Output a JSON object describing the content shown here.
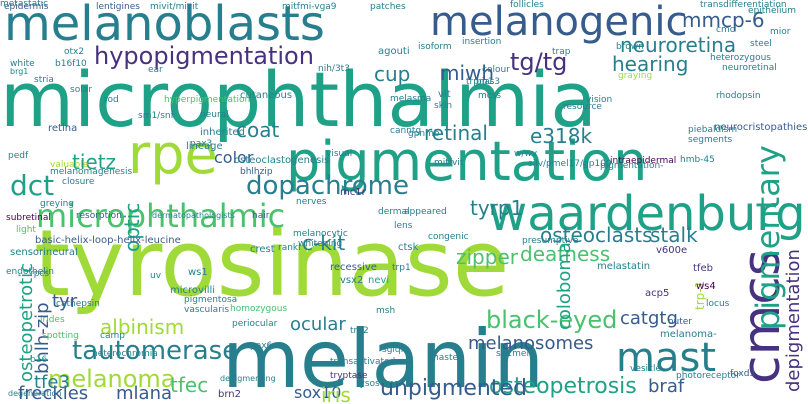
{
  "title": "",
  "palette": {
    "background": "#ffffff",
    "yellow_green": "#a0da39",
    "green": "#4ac16d",
    "teal_green": "#1fa187",
    "teal": "#277f8e",
    "blue": "#365c8d",
    "indigo": "#46327e",
    "purple": "#440154",
    "lime": "#d8e219",
    "light_green": "#7ad151"
  },
  "words": [
    {
      "text": "tyrosinase",
      "color": "#a0da39",
      "orientation": "horizontal"
    },
    {
      "text": "microphthalmia",
      "color": "#1fa187",
      "orientation": "horizontal"
    },
    {
      "text": "melanin",
      "color": "#277f8e",
      "orientation": "horizontal"
    },
    {
      "text": "pigmentation",
      "color": "#1fa187",
      "orientation": "horizontal"
    },
    {
      "text": "melanoblasts",
      "color": "#277f8e",
      "orientation": "horizontal"
    },
    {
      "text": "waardenburg",
      "color": "#1fa187",
      "orientation": "horizontal"
    },
    {
      "text": "melanogenic",
      "color": "#365c8d",
      "orientation": "horizontal"
    },
    {
      "text": "rpe",
      "color": "#a0da39",
      "orientation": "horizontal"
    },
    {
      "text": "cmcs",
      "color": "#46327e",
      "orientation": "vertical"
    },
    {
      "text": "mast",
      "color": "#277f8e",
      "orientation": "horizontal"
    },
    {
      "text": "microphthalmic",
      "color": "#4ac16d",
      "orientation": "horizontal"
    },
    {
      "text": "pigmentary",
      "color": "#1fa187",
      "orientation": "vertical"
    },
    {
      "text": "dopachrome",
      "color": "#277f8e",
      "orientation": "horizontal"
    },
    {
      "text": "dct",
      "color": "#1fa187",
      "orientation": "horizontal"
    },
    {
      "text": "hypopigmentation",
      "color": "#46327e",
      "orientation": "horizontal"
    },
    {
      "text": "tautomerase",
      "color": "#277f8e",
      "orientation": "horizontal"
    },
    {
      "text": "melanoma",
      "color": "#a0da39",
      "orientation": "horizontal"
    },
    {
      "text": "melanosomes",
      "color": "#365c8d",
      "orientation": "horizontal"
    },
    {
      "text": "black-eyed",
      "color": "#4ac16d",
      "orientation": "horizontal"
    },
    {
      "text": "osteopetrosis",
      "color": "#1fa187",
      "orientation": "horizontal"
    },
    {
      "text": "unpigmented",
      "color": "#365c8d",
      "orientation": "horizontal"
    },
    {
      "text": "tg/tg",
      "color": "#46327e",
      "orientation": "horizontal"
    },
    {
      "text": "mmcp-6",
      "color": "#365c8d",
      "orientation": "horizontal"
    },
    {
      "text": "neuroretina",
      "color": "#277f8e",
      "orientation": "horizontal"
    },
    {
      "text": "hearing",
      "color": "#277f8e",
      "orientation": "horizontal"
    },
    {
      "text": "cup",
      "color": "#277f8e",
      "orientation": "horizontal"
    },
    {
      "text": "miwh",
      "color": "#365c8d",
      "orientation": "horizontal"
    },
    {
      "text": "retinal",
      "color": "#277f8e",
      "orientation": "horizontal"
    },
    {
      "text": "e318k",
      "color": "#277f8e",
      "orientation": "horizontal"
    },
    {
      "text": "osteoclasts",
      "color": "#277f8e",
      "orientation": "horizontal"
    },
    {
      "text": "stalk",
      "color": "#277f8e",
      "orientation": "horizontal"
    },
    {
      "text": "deafness",
      "color": "#4ac16d",
      "orientation": "horizontal"
    },
    {
      "text": "zipper",
      "color": "#4ac16d",
      "orientation": "horizontal"
    },
    {
      "text": "c-kit",
      "color": "#277f8e",
      "orientation": "horizontal"
    },
    {
      "text": "tyrp1",
      "color": "#277f8e",
      "orientation": "horizontal"
    },
    {
      "text": "tietz",
      "color": "#1fa187",
      "orientation": "horizontal"
    },
    {
      "text": "color",
      "color": "#365c8d",
      "orientation": "horizontal"
    },
    {
      "text": "optic",
      "color": "#1fa187",
      "orientation": "vertical"
    },
    {
      "text": "coat",
      "color": "#277f8e",
      "orientation": "horizontal"
    },
    {
      "text": "albinism",
      "color": "#a0da39",
      "orientation": "horizontal"
    },
    {
      "text": "ocular",
      "color": "#277f8e",
      "orientation": "horizontal"
    },
    {
      "text": "tyr",
      "color": "#365c8d",
      "orientation": "horizontal"
    },
    {
      "text": "freckles",
      "color": "#365c8d",
      "orientation": "horizontal"
    },
    {
      "text": "mlana",
      "color": "#365c8d",
      "orientation": "horizontal"
    },
    {
      "text": "tfec",
      "color": "#4ac16d",
      "orientation": "horizontal"
    },
    {
      "text": "sox10",
      "color": "#365c8d",
      "orientation": "horizontal"
    },
    {
      "text": "iris",
      "color": "#a0da39",
      "orientation": "horizontal"
    },
    {
      "text": "braf",
      "color": "#365c8d",
      "orientation": "horizontal"
    },
    {
      "text": "catgtg",
      "color": "#365c8d",
      "orientation": "horizontal"
    },
    {
      "text": "coloboma",
      "color": "#1fa187",
      "orientation": "vertical"
    },
    {
      "text": "tfe3",
      "color": "#277f8e",
      "orientation": "horizontal"
    },
    {
      "text": "bhlh-zip",
      "color": "#365c8d",
      "orientation": "vertical"
    },
    {
      "text": "osteopetrotic",
      "color": "#1fa187",
      "orientation": "vertical"
    },
    {
      "text": "depigmentation",
      "color": "#46327e",
      "orientation": "vertical"
    },
    {
      "text": "trp-1",
      "color": "#a0da39",
      "orientation": "vertical"
    },
    {
      "text": "mc1r",
      "color": "#46327e",
      "orientation": "horizontal"
    },
    {
      "text": "melastatin",
      "color": "#277f8e",
      "orientation": "horizontal"
    },
    {
      "text": "tfeb",
      "color": "#46327e",
      "orientation": "horizontal"
    },
    {
      "text": "acp5",
      "color": "#46327e",
      "orientation": "horizontal"
    },
    {
      "text": "brn2",
      "color": "#46327e",
      "orientation": "horizontal"
    },
    {
      "text": "v600e",
      "color": "#46327e",
      "orientation": "horizontal"
    },
    {
      "text": "retina",
      "color": "#365c8d",
      "orientation": "horizontal"
    },
    {
      "text": "basic-helix-loop-helix-leucine",
      "color": "#365c8d",
      "orientation": "horizontal"
    },
    {
      "text": "sensorineural",
      "color": "#277f8e",
      "orientation": "horizontal"
    },
    {
      "text": "subretinal",
      "color": "#440154",
      "orientation": "horizontal"
    },
    {
      "text": "greying",
      "color": "#277f8e",
      "orientation": "horizontal"
    },
    {
      "text": "resorption",
      "color": "#365c8d",
      "orientation": "horizontal"
    },
    {
      "text": "dermatopathologists",
      "color": "#277f8e",
      "orientation": "horizontal"
    },
    {
      "text": "melanomagenesis",
      "color": "#277f8e",
      "orientation": "horizontal"
    },
    {
      "text": "closure",
      "color": "#277f8e",
      "orientation": "horizontal"
    },
    {
      "text": "valuable",
      "color": "#a0da39",
      "orientation": "horizontal"
    },
    {
      "text": "lineage",
      "color": "#277f8e",
      "orientation": "horizontal"
    },
    {
      "text": "osteoclastogenesis",
      "color": "#277f8e",
      "orientation": "horizontal"
    },
    {
      "text": "bhlhzip",
      "color": "#365c8d",
      "orientation": "horizontal"
    },
    {
      "text": "mitfvit",
      "color": "#277f8e",
      "orientation": "horizontal"
    },
    {
      "text": "silv/pmel17/gp100",
      "color": "#277f8e",
      "orientation": "horizontal"
    },
    {
      "text": "intraepidermal",
      "color": "#440154",
      "orientation": "horizontal"
    },
    {
      "text": "hmb-45",
      "color": "#277f8e",
      "orientation": "horizontal"
    },
    {
      "text": "neurocristopathies",
      "color": "#365c8d",
      "orientation": "horizontal"
    },
    {
      "text": "piebaldism",
      "color": "#277f8e",
      "orientation": "horizontal"
    },
    {
      "text": "segments",
      "color": "#277f8e",
      "orientation": "horizontal"
    },
    {
      "text": "nerves",
      "color": "#277f8e",
      "orientation": "horizontal"
    },
    {
      "text": "melanocytic",
      "color": "#277f8e",
      "orientation": "horizontal"
    },
    {
      "text": "whitening",
      "color": "#277f8e",
      "orientation": "horizontal"
    },
    {
      "text": "presumptive",
      "color": "#277f8e",
      "orientation": "horizontal"
    },
    {
      "text": "recessive",
      "color": "#365c8d",
      "orientation": "horizontal"
    },
    {
      "text": "vsx2",
      "color": "#277f8e",
      "orientation": "horizontal"
    },
    {
      "text": "nevi",
      "color": "#1fa187",
      "orientation": "horizontal"
    },
    {
      "text": "rpcs",
      "color": "#277f8e",
      "orientation": "horizontal"
    },
    {
      "text": "cathepsin",
      "color": "#277f8e",
      "orientation": "horizontal"
    },
    {
      "text": "irides",
      "color": "#4ac16d",
      "orientation": "horizontal"
    },
    {
      "text": "spotting",
      "color": "#4ac16d",
      "orientation": "horizontal"
    },
    {
      "text": "b16",
      "color": "#1fa187",
      "orientation": "horizontal"
    },
    {
      "text": "camp",
      "color": "#277f8e",
      "orientation": "horizontal"
    },
    {
      "text": "heterochromia",
      "color": "#277f8e",
      "orientation": "horizontal"
    },
    {
      "text": "degeneration",
      "color": "#277f8e",
      "orientation": "horizontal"
    },
    {
      "text": "depigmenting",
      "color": "#277f8e",
      "orientation": "horizontal"
    },
    {
      "text": "tryptase",
      "color": "#46327e",
      "orientation": "horizontal"
    },
    {
      "text": "transactivated",
      "color": "#277f8e",
      "orientation": "horizontal"
    },
    {
      "text": "lysosomal",
      "color": "#277f8e",
      "orientation": "horizontal"
    },
    {
      "text": "vesicle",
      "color": "#277f8e",
      "orientation": "horizontal"
    },
    {
      "text": "photoreceptor",
      "color": "#277f8e",
      "orientation": "horizontal"
    },
    {
      "text": "foxd3",
      "color": "#365c8d",
      "orientation": "horizontal"
    },
    {
      "text": "s01mel",
      "color": "#277f8e",
      "orientation": "horizontal"
    },
    {
      "text": "homozygous",
      "color": "#4ac16d",
      "orientation": "horizontal"
    },
    {
      "text": "periocular",
      "color": "#277f8e",
      "orientation": "horizontal"
    },
    {
      "text": "pigmentosa",
      "color": "#277f8e",
      "orientation": "horizontal"
    },
    {
      "text": "vascularis",
      "color": "#277f8e",
      "orientation": "horizontal"
    },
    {
      "text": "microvilli",
      "color": "#277f8e",
      "orientation": "horizontal"
    },
    {
      "text": "ws1",
      "color": "#277f8e",
      "orientation": "horizontal"
    },
    {
      "text": "crest",
      "color": "#277f8e",
      "orientation": "horizontal"
    },
    {
      "text": "rankl",
      "color": "#277f8e",
      "orientation": "horizontal"
    },
    {
      "text": "trp1",
      "color": "#277f8e",
      "orientation": "horizontal"
    },
    {
      "text": "ctsk",
      "color": "#277f8e",
      "orientation": "horizontal"
    },
    {
      "text": "lens",
      "color": "#277f8e",
      "orientation": "horizontal"
    },
    {
      "text": "dermal",
      "color": "#277f8e",
      "orientation": "horizontal"
    },
    {
      "text": "appeared",
      "color": "#277f8e",
      "orientation": "horizontal"
    },
    {
      "text": "melanoma-",
      "color": "#277f8e",
      "orientation": "horizontal"
    },
    {
      "text": "outer",
      "color": "#365c8d",
      "orientation": "horizontal"
    },
    {
      "text": "locus",
      "color": "#277f8e",
      "orientation": "horizontal"
    },
    {
      "text": "ws4",
      "color": "#440154",
      "orientation": "horizontal"
    },
    {
      "text": "inherited",
      "color": "#277f8e",
      "orientation": "horizontal"
    },
    {
      "text": "pax3",
      "color": "#277f8e",
      "orientation": "horizontal"
    },
    {
      "text": "neural",
      "color": "#277f8e",
      "orientation": "horizontal"
    },
    {
      "text": "sm1/snf",
      "color": "#277f8e",
      "orientation": "horizontal"
    },
    {
      "text": "cutaneous",
      "color": "#277f8e",
      "orientation": "horizontal"
    },
    {
      "text": "hair",
      "color": "#365c8d",
      "orientation": "horizontal"
    },
    {
      "text": "gpnmb",
      "color": "#277f8e",
      "orientation": "horizontal"
    },
    {
      "text": "canntg",
      "color": "#277f8e",
      "orientation": "horizontal"
    },
    {
      "text": "resource",
      "color": "#277f8e",
      "orientation": "horizontal"
    },
    {
      "text": "vision",
      "color": "#277f8e",
      "orientation": "horizontal"
    },
    {
      "text": "vit",
      "color": "#277f8e",
      "orientation": "horizontal"
    },
    {
      "text": "skin",
      "color": "#277f8e",
      "orientation": "horizontal"
    },
    {
      "text": "agouti",
      "color": "#277f8e",
      "orientation": "horizontal"
    },
    {
      "text": "nih/3t3",
      "color": "#277f8e",
      "orientation": "horizontal"
    },
    {
      "text": "rod",
      "color": "#277f8e",
      "orientation": "horizontal"
    },
    {
      "text": "solar",
      "color": "#277f8e",
      "orientation": "horizontal"
    },
    {
      "text": "stria",
      "color": "#277f8e",
      "orientation": "horizontal"
    },
    {
      "text": "otx2",
      "color": "#277f8e",
      "orientation": "horizontal"
    },
    {
      "text": "white",
      "color": "#277f8e",
      "orientation": "horizontal"
    },
    {
      "text": "b16f10",
      "color": "#277f8e",
      "orientation": "horizontal"
    },
    {
      "text": "brg1",
      "color": "#277f8e",
      "orientation": "horizontal"
    },
    {
      "text": "epidermis",
      "color": "#365c8d",
      "orientation": "horizontal"
    },
    {
      "text": "lentigines",
      "color": "#365c8d",
      "orientation": "horizontal"
    },
    {
      "text": "mivit/mivit",
      "color": "#277f8e",
      "orientation": "horizontal"
    },
    {
      "text": "mitfmi-vga9",
      "color": "#277f8e",
      "orientation": "horizontal"
    },
    {
      "text": "patches",
      "color": "#277f8e",
      "orientation": "horizontal"
    },
    {
      "text": "follicles",
      "color": "#277f8e",
      "orientation": "horizontal"
    },
    {
      "text": "transdifferentiation",
      "color": "#277f8e",
      "orientation": "horizontal"
    },
    {
      "text": "epithelium",
      "color": "#277f8e",
      "orientation": "horizontal"
    },
    {
      "text": "cmc",
      "color": "#277f8e",
      "orientation": "horizontal"
    },
    {
      "text": "mior",
      "color": "#277f8e",
      "orientation": "horizontal"
    },
    {
      "text": "steel",
      "color": "#277f8e",
      "orientation": "horizontal"
    },
    {
      "text": "isoform",
      "color": "#277f8e",
      "orientation": "horizontal"
    },
    {
      "text": "insertion",
      "color": "#277f8e",
      "orientation": "horizontal"
    },
    {
      "text": "trpm1",
      "color": "#277f8e",
      "orientation": "horizontal"
    },
    {
      "text": "colour",
      "color": "#277f8e",
      "orientation": "horizontal"
    },
    {
      "text": "pias3",
      "color": "#277f8e",
      "orientation": "horizontal"
    },
    {
      "text": "trap",
      "color": "#277f8e",
      "orientation": "horizontal"
    },
    {
      "text": "brown",
      "color": "#277f8e",
      "orientation": "horizontal"
    },
    {
      "text": "graying",
      "color": "#a0da39",
      "orientation": "horizontal"
    },
    {
      "text": "heterozygous",
      "color": "#277f8e",
      "orientation": "horizontal"
    },
    {
      "text": "neuroretinal",
      "color": "#277f8e",
      "orientation": "horizontal"
    },
    {
      "text": "rhodopsin",
      "color": "#277f8e",
      "orientation": "horizontal"
    },
    {
      "text": "ear",
      "color": "#277f8e",
      "orientation": "horizontal"
    },
    {
      "text": "hyperpigmentation",
      "color": "#4ac16d",
      "orientation": "horizontal"
    },
    {
      "text": "pedf",
      "color": "#277f8e",
      "orientation": "horizontal"
    },
    {
      "text": "light",
      "color": "#4ac16d",
      "orientation": "horizontal"
    },
    {
      "text": "endothelin",
      "color": "#277f8e",
      "orientation": "horizontal"
    },
    {
      "text": "visual",
      "color": "#277f8e",
      "orientation": "horizontal"
    },
    {
      "text": "melasma",
      "color": "#277f8e",
      "orientation": "horizontal"
    },
    {
      "text": "congenic",
      "color": "#277f8e",
      "orientation": "horizontal"
    },
    {
      "text": "msh",
      "color": "#277f8e",
      "orientation": "horizontal"
    },
    {
      "text": "pigmentation-",
      "color": "#277f8e",
      "orientation": "horizontal"
    },
    {
      "text": "mcss",
      "color": "#277f8e",
      "orientation": "horizontal"
    },
    {
      "text": "w/wv",
      "color": "#277f8e",
      "orientation": "horizontal"
    },
    {
      "text": "uv",
      "color": "#277f8e",
      "orientation": "horizontal"
    },
    {
      "text": "sgiqf",
      "color": "#277f8e",
      "orientation": "horizontal"
    },
    {
      "text": "pax6",
      "color": "#277f8e",
      "orientation": "horizontal"
    },
    {
      "text": "trp2",
      "color": "#277f8e",
      "orientation": "horizontal"
    },
    {
      "text": "master",
      "color": "#277f8e",
      "orientation": "horizontal"
    },
    {
      "text": "metastatic",
      "color": "#277f8e",
      "orientation": "horizontal"
    }
  ]
}
